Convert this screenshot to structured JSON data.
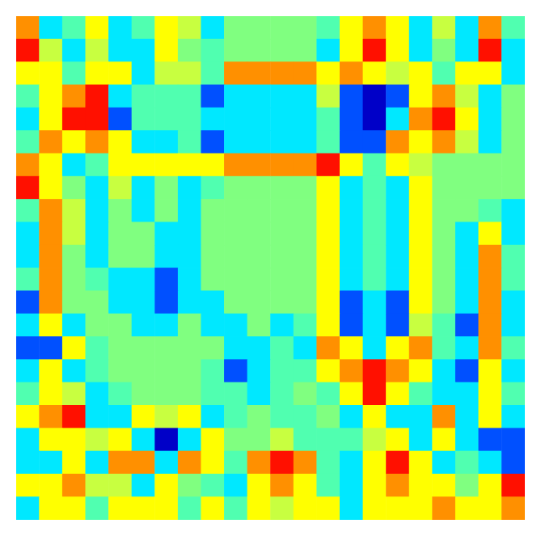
{
  "chart_data": {
    "type": "heatmap",
    "tick_labels": false,
    "grid": false,
    "zlim": [
      -4,
      4
    ],
    "cells": [
      [
        3,
        -2,
        -1,
        2,
        -2,
        -1,
        2,
        1,
        -2,
        0,
        0,
        0,
        0,
        -1,
        2,
        3,
        2,
        -2,
        1,
        -2,
        3,
        -1
      ],
      [
        4,
        1,
        -2,
        1,
        -2,
        -2,
        2,
        0,
        -1,
        0,
        0,
        0,
        0,
        -2,
        2,
        4,
        2,
        -2,
        0,
        -2,
        4,
        -2
      ],
      [
        2,
        2,
        -1,
        2,
        2,
        -2,
        1,
        1,
        -1,
        3,
        3,
        3,
        3,
        2,
        3,
        2,
        1,
        2,
        -1,
        2,
        2,
        -2
      ],
      [
        -1,
        2,
        3,
        4,
        -2,
        -1,
        -1,
        -1,
        -3,
        -2,
        -2,
        -2,
        -2,
        1,
        -3,
        -4,
        -3,
        2,
        3,
        1,
        -2,
        0
      ],
      [
        -2,
        2,
        4,
        4,
        -3,
        -1,
        -1,
        -1,
        -2,
        -2,
        -2,
        -2,
        -2,
        -1,
        -3,
        -4,
        -2,
        3,
        4,
        2,
        -2,
        0
      ],
      [
        -1,
        3,
        2,
        3,
        2,
        -2,
        -2,
        -1,
        -3,
        -2,
        -2,
        -2,
        -2,
        -1,
        -3,
        -3,
        3,
        2,
        3,
        1,
        -2,
        0
      ],
      [
        3,
        2,
        -2,
        -1,
        2,
        2,
        2,
        2,
        2,
        3,
        3,
        3,
        3,
        4,
        2,
        -1,
        2,
        1,
        0,
        0,
        0,
        0
      ],
      [
        4,
        2,
        0,
        -2,
        1,
        -2,
        0,
        -2,
        -1,
        0,
        0,
        0,
        0,
        2,
        -2,
        -1,
        -2,
        2,
        0,
        0,
        0,
        0
      ],
      [
        -1,
        3,
        1,
        -2,
        0,
        -2,
        0,
        -2,
        0,
        0,
        0,
        0,
        0,
        2,
        -2,
        -1,
        -2,
        2,
        0,
        0,
        -1,
        -2
      ],
      [
        -2,
        3,
        1,
        -2,
        0,
        0,
        -2,
        -2,
        0,
        0,
        0,
        0,
        0,
        2,
        -2,
        -1,
        -2,
        2,
        0,
        -2,
        2,
        -2
      ],
      [
        -2,
        3,
        0,
        -2,
        0,
        0,
        -2,
        -2,
        0,
        0,
        0,
        0,
        0,
        2,
        -2,
        -1,
        -2,
        2,
        0,
        -2,
        3,
        -1
      ],
      [
        -1,
        3,
        0,
        -1,
        -2,
        -2,
        -3,
        -2,
        0,
        0,
        0,
        0,
        0,
        2,
        -2,
        -1,
        -2,
        2,
        0,
        -2,
        3,
        -1
      ],
      [
        -3,
        3,
        0,
        0,
        -2,
        -2,
        -3,
        -2,
        -2,
        0,
        0,
        0,
        0,
        2,
        -3,
        -2,
        -3,
        2,
        0,
        -2,
        3,
        -2
      ],
      [
        -2,
        2,
        -2,
        0,
        0,
        -2,
        -2,
        0,
        -2,
        -2,
        0,
        -2,
        -1,
        2,
        -3,
        -2,
        -3,
        1,
        -1,
        -3,
        3,
        -2
      ],
      [
        -3,
        -3,
        2,
        -1,
        0,
        0,
        0,
        0,
        0,
        -2,
        -2,
        -1,
        -2,
        3,
        2,
        -2,
        2,
        3,
        -1,
        -2,
        3,
        -1
      ],
      [
        -2,
        2,
        -2,
        -1,
        0,
        0,
        0,
        0,
        -1,
        -3,
        -2,
        -1,
        -1,
        2,
        3,
        4,
        3,
        2,
        -2,
        -3,
        2,
        -2
      ],
      [
        -1,
        2,
        1,
        -2,
        -1,
        0,
        0,
        0,
        -1,
        -1,
        -2,
        -1,
        0,
        -1,
        2,
        4,
        2,
        -1,
        -2,
        -2,
        2,
        -1
      ],
      [
        2,
        3,
        4,
        -2,
        -2,
        2,
        1,
        2,
        -2,
        -1,
        0,
        -1,
        -1,
        0,
        -2,
        2,
        -2,
        -2,
        3,
        -2,
        2,
        -2
      ],
      [
        -2,
        2,
        2,
        1,
        2,
        -2,
        -4,
        -2,
        2,
        0,
        0,
        1,
        -1,
        -1,
        -1,
        1,
        2,
        -2,
        2,
        -2,
        -3,
        -3
      ],
      [
        -2,
        -2,
        2,
        -2,
        3,
        3,
        -2,
        3,
        2,
        -1,
        3,
        4,
        3,
        -1,
        -2,
        2,
        4,
        2,
        -2,
        -1,
        -2,
        -3
      ],
      [
        2,
        2,
        3,
        1,
        1,
        -2,
        2,
        0,
        -1,
        -2,
        2,
        3,
        2,
        -1,
        -2,
        2,
        3,
        2,
        2,
        0,
        2,
        4
      ],
      [
        -2,
        2,
        2,
        -1,
        2,
        2,
        2,
        -1,
        2,
        -1,
        2,
        1,
        2,
        2,
        -2,
        2,
        2,
        2,
        3,
        2,
        2,
        3
      ]
    ]
  }
}
